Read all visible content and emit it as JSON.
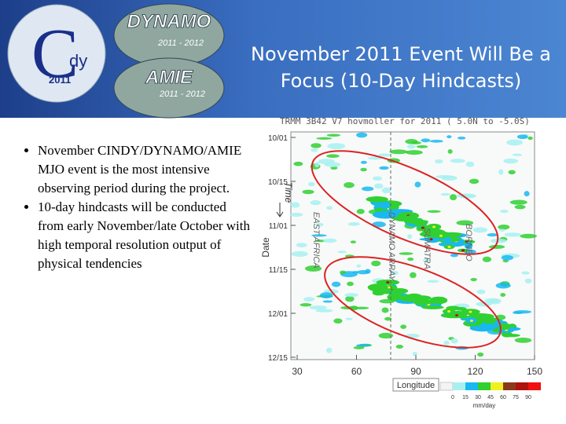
{
  "header": {
    "title": "November 2011 Event Will Be a Focus (10-Day Hindcasts)",
    "logos": {
      "cindy": {
        "letter": "C",
        "suffix": "dy",
        "year": "2011"
      },
      "dynamo": {
        "name": "DYNAMO",
        "years": "2011 - 2012"
      },
      "amie": {
        "name": "AMIE",
        "years": "2011 - 2012"
      }
    }
  },
  "bullets": [
    "November CINDY/DYNAMO/AMIE MJO event is the most intensive observing period during the project.",
    "10-day hindcasts will be conducted from early November/late October with high temporal resolution output of physical tendencies"
  ],
  "figure": {
    "title": "TRMM 3B42 V7 hovmoller for 2011 ( 5.0N to -5.0S)",
    "y_label": "Date",
    "time_label": "Time",
    "x_label": "Longitude",
    "date_ticks": [
      "10/01",
      "10/15",
      "11/01",
      "11/15",
      "12/01",
      "12/15"
    ],
    "lon_ticks": [
      30,
      60,
      90,
      120,
      150
    ],
    "regions": [
      "EAST AFRICA",
      "DYNAMO ARRAY",
      "SUMATRA",
      "BORNEO"
    ],
    "colorbar": {
      "ticks": [
        0,
        15,
        30,
        45,
        60,
        75,
        90
      ],
      "unit": "mm/day"
    }
  }
}
